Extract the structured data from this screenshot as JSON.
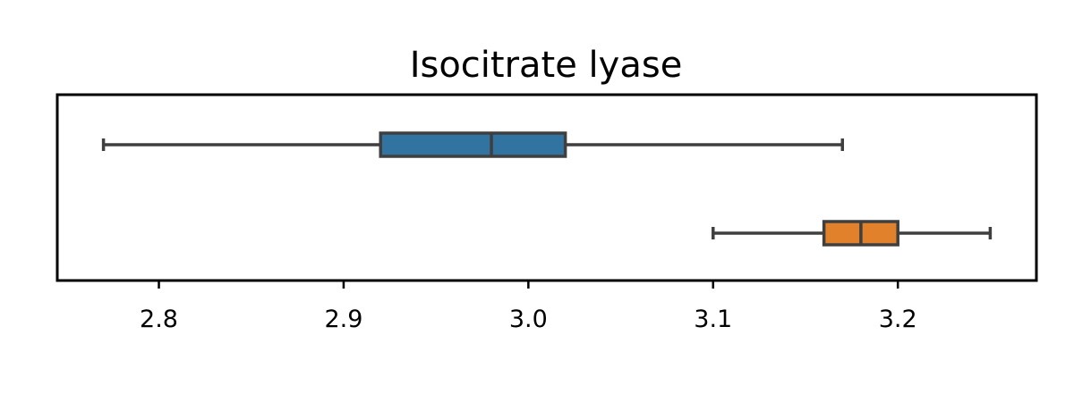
{
  "chart_data": {
    "type": "box",
    "orientation": "horizontal",
    "title": "Isocitrate lyase",
    "xlabel": "",
    "ylabel": "",
    "xlim": [
      2.745,
      3.275
    ],
    "xticks": [
      2.8,
      2.9,
      3.0,
      3.1,
      3.2
    ],
    "xtick_labels": [
      "2.8",
      "2.9",
      "3.0",
      "3.1",
      "3.2"
    ],
    "grid": false,
    "series": [
      {
        "color": "#3274a1",
        "min": 2.77,
        "q1": 2.92,
        "median": 2.98,
        "q3": 3.02,
        "max": 3.17
      },
      {
        "color": "#e1812c",
        "min": 3.1,
        "q1": 3.16,
        "median": 3.18,
        "q3": 3.2,
        "max": 3.25
      }
    ],
    "line_color": "#3f3f3f"
  }
}
